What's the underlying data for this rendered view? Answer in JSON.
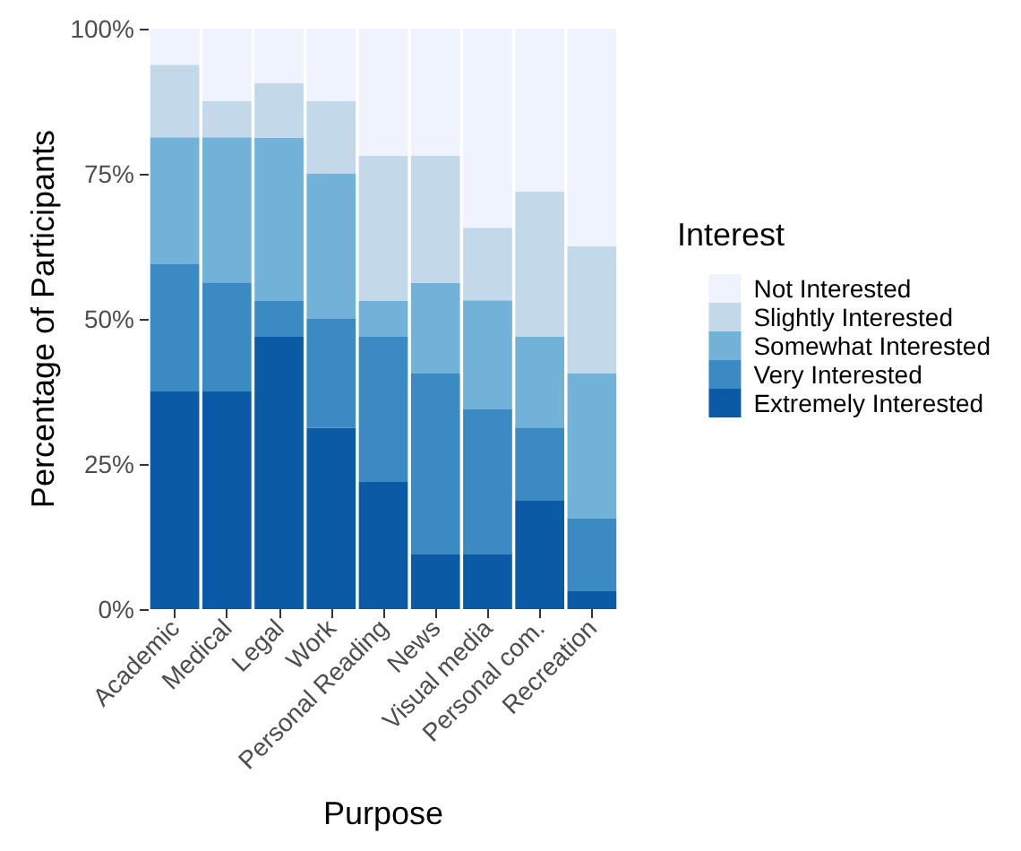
{
  "chart_data": {
    "type": "bar",
    "stacked": true,
    "xlabel": "Purpose",
    "ylabel": "Percentage of Participants",
    "legend_title": "Interest",
    "legend": "right",
    "grid": false,
    "categories": [
      "Academic",
      "Medical",
      "Legal",
      "Work",
      "Personal Reading",
      "News",
      "Visual media",
      "Personal com.",
      "Recreation"
    ],
    "ylim": [
      0,
      100
    ],
    "yticks": [
      {
        "value": 0,
        "label": "0%"
      },
      {
        "value": 25,
        "label": "25%"
      },
      {
        "value": 50,
        "label": "50%"
      },
      {
        "value": 75,
        "label": "75%"
      },
      {
        "value": 100,
        "label": "100%"
      }
    ],
    "series": [
      {
        "name": "Extremely Interested",
        "color": "#0b5aa6",
        "values": [
          37.5,
          37.5,
          46.9,
          31.2,
          21.9,
          9.4,
          9.4,
          18.8,
          3.1
        ]
      },
      {
        "name": "Very Interested",
        "color": "#3b8ac4",
        "values": [
          21.9,
          18.8,
          6.2,
          18.8,
          25,
          31.2,
          25,
          12.5,
          12.5
        ]
      },
      {
        "name": "Somewhat Interested",
        "color": "#72b2d8",
        "values": [
          21.9,
          25,
          28.1,
          25,
          6.2,
          15.6,
          18.8,
          15.6,
          25
        ]
      },
      {
        "name": "Slightly Interested",
        "color": "#c3d9ea",
        "values": [
          12.5,
          6.2,
          9.4,
          12.5,
          25,
          21.9,
          12.5,
          25,
          21.9
        ]
      },
      {
        "name": "Not Interested",
        "color": "#eef3fd",
        "values": [
          6.2,
          12.5,
          9.4,
          12.5,
          21.9,
          21.9,
          34.4,
          28.1,
          37.5
        ]
      }
    ]
  }
}
